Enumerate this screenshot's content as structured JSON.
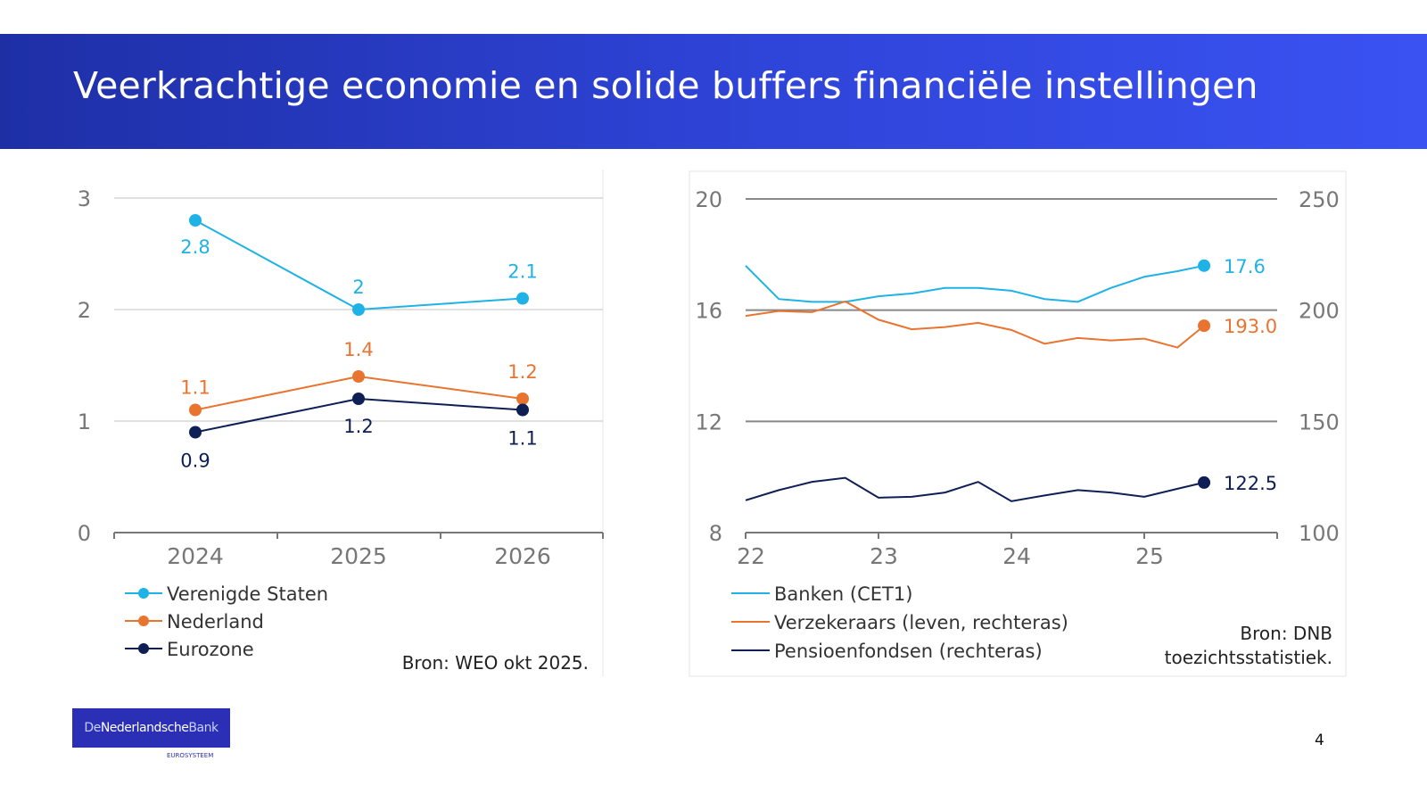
{
  "slide": {
    "title": "Veerkrachtige economie en solide buffers financiële instellingen",
    "page_number": "4",
    "logo": {
      "text_de": "De",
      "text_ned": "Nederlandsche",
      "text_bank": "Bank",
      "sub": "EUROSYSTEEM"
    },
    "colors": {
      "banner": "#2e43d6",
      "light_blue": "#1fb2e6",
      "orange": "#e8742f",
      "navy": "#0d1f55"
    }
  },
  "chart_data": [
    {
      "type": "line",
      "categories": [
        "2024",
        "2025",
        "2026"
      ],
      "ylim": [
        0,
        3
      ],
      "yticks": [
        "0",
        "1",
        "2",
        "3"
      ],
      "grid": true,
      "legend_placement": "bottom-left",
      "source": "Bron: WEO okt 2025.",
      "series": [
        {
          "name": "Verenigde Staten",
          "color": "#1fb2e6",
          "values": [
            2.8,
            2,
            2.1
          ],
          "labels": [
            "2.8",
            "2",
            "2.1"
          ]
        },
        {
          "name": "Nederland",
          "color": "#e8742f",
          "values": [
            1.1,
            1.4,
            1.2
          ],
          "labels": [
            "1.1",
            "1.4",
            "1.2"
          ]
        },
        {
          "name": "Eurozone",
          "color": "#0d1f55",
          "values": [
            0.9,
            1.2,
            1.1
          ],
          "labels": [
            "0.9",
            "1.2",
            "1.1"
          ]
        }
      ]
    },
    {
      "type": "line",
      "x": [
        22.0,
        22.25,
        22.5,
        22.75,
        23.0,
        23.25,
        23.5,
        23.75,
        24.0,
        24.25,
        24.5,
        24.75,
        25.0,
        25.25,
        25.45
      ],
      "xlim": [
        22,
        26
      ],
      "xticks": [
        "22",
        "23",
        "24",
        "25"
      ],
      "ylim_left": [
        8,
        20
      ],
      "yticks_left": [
        "8",
        "12",
        "16",
        "20"
      ],
      "ylim_right": [
        100,
        250
      ],
      "yticks_right": [
        "100",
        "150",
        "200",
        "250"
      ],
      "grid": true,
      "legend_placement": "bottom-left",
      "source_line1": "Bron: DNB",
      "source_line2": "toezichtsstatistiek.",
      "series": [
        {
          "name": "Banken (CET1)",
          "axis": "left",
          "color": "#1fb2e6",
          "end_label": "17.6",
          "values": [
            17.6,
            16.4,
            16.3,
            16.3,
            16.5,
            16.6,
            16.8,
            16.8,
            16.7,
            16.4,
            16.3,
            16.8,
            17.2,
            17.4,
            17.6
          ]
        },
        {
          "name": "Verzekeraars (leven, rechteras)",
          "axis": "right",
          "color": "#e8742f",
          "end_label": "193.0",
          "values": [
            197.4,
            199.6,
            199.1,
            203.9,
            195.7,
            191.4,
            192.4,
            194.3,
            191.1,
            184.9,
            187.5,
            186.4,
            187.2,
            183.2,
            193.0
          ]
        },
        {
          "name": "Pensioenfondsen (rechteras)",
          "axis": "right",
          "color": "#0d1f55",
          "end_label": "122.5",
          "values": [
            114.5,
            119.1,
            122.8,
            124.6,
            115.7,
            116.1,
            118.0,
            122.8,
            114.1,
            116.7,
            119.1,
            118.0,
            116.1,
            119.7,
            122.5
          ]
        }
      ]
    }
  ]
}
